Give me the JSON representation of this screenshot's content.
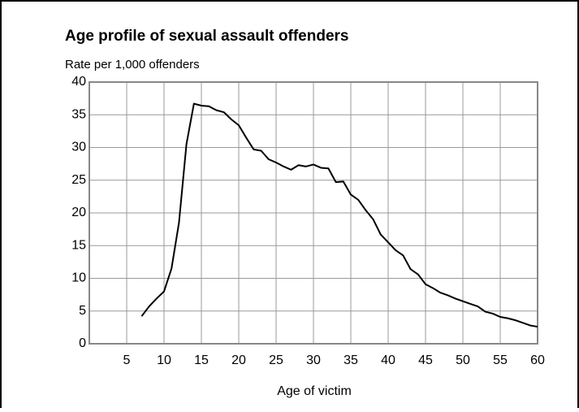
{
  "chart_data": {
    "type": "line",
    "title": "Age profile of sexual assault offenders",
    "subtitle": "Rate per 1,000 offenders",
    "xlabel": "Age of victim",
    "x": [
      7,
      8,
      9,
      10,
      11,
      12,
      13,
      14,
      15,
      16,
      17,
      18,
      19,
      20,
      21,
      22,
      23,
      24,
      25,
      26,
      27,
      28,
      29,
      30,
      31,
      32,
      33,
      34,
      35,
      36,
      37,
      38,
      39,
      40,
      41,
      42,
      43,
      44,
      45,
      46,
      47,
      48,
      49,
      50,
      51,
      52,
      53,
      54,
      55,
      56,
      57,
      58,
      59,
      60
    ],
    "series": [
      {
        "name": "Rate",
        "color": "#000000",
        "values": [
          4.2,
          5.7,
          6.9,
          8.0,
          11.5,
          18.5,
          30.5,
          36.7,
          36.4,
          36.3,
          35.7,
          35.4,
          34.3,
          33.4,
          31.5,
          29.7,
          29.5,
          28.2,
          27.7,
          27.1,
          26.6,
          27.3,
          27.1,
          27.4,
          26.9,
          26.8,
          24.7,
          24.8,
          22.8,
          22.0,
          20.4,
          19.0,
          16.7,
          15.5,
          14.3,
          13.5,
          11.4,
          10.6,
          9.1,
          8.5,
          7.8,
          7.4,
          6.9,
          6.5,
          6.1,
          5.7,
          4.9,
          4.6,
          4.1,
          3.9,
          3.6,
          3.2,
          2.8,
          2.6
        ]
      }
    ],
    "xlim": [
      0,
      60
    ],
    "xticks": [
      5,
      10,
      15,
      20,
      25,
      30,
      35,
      40,
      45,
      50,
      55,
      60
    ],
    "ylim": [
      0,
      40
    ],
    "yticks": [
      0,
      5,
      10,
      15,
      20,
      25,
      30,
      35,
      40
    ],
    "grid": true
  }
}
